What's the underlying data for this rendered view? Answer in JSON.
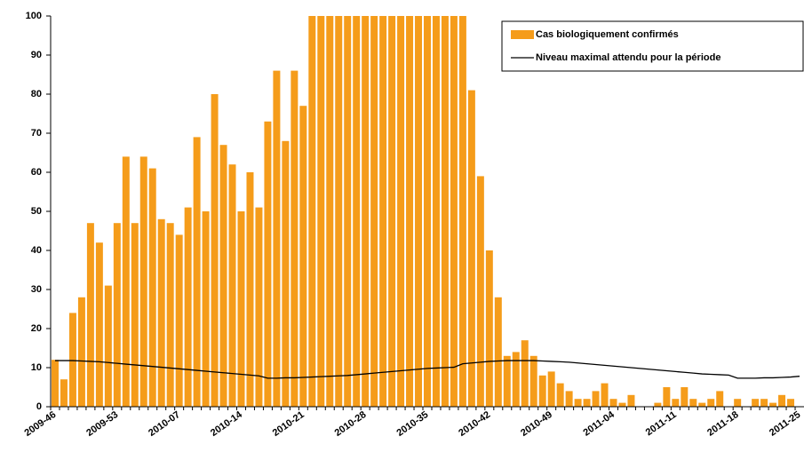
{
  "chart_data": {
    "type": "bar",
    "categories": [
      "2009-46",
      null,
      null,
      null,
      null,
      null,
      null,
      "2009-53",
      null,
      null,
      null,
      null,
      null,
      null,
      "2010-07",
      null,
      null,
      null,
      null,
      null,
      null,
      "2010-14",
      null,
      null,
      null,
      null,
      null,
      null,
      "2010-21",
      null,
      null,
      null,
      null,
      null,
      null,
      "2010-28",
      null,
      null,
      null,
      null,
      null,
      null,
      "2010-35",
      null,
      null,
      null,
      null,
      null,
      null,
      "2010-42",
      null,
      null,
      null,
      null,
      null,
      null,
      "2010-49",
      null,
      null,
      null,
      null,
      null,
      null,
      "2011-04",
      null,
      null,
      null,
      null,
      null,
      null,
      "2011-11",
      null,
      null,
      null,
      null,
      null,
      null,
      "2011-18",
      null,
      null,
      null,
      null,
      null,
      null,
      "2011-25"
    ],
    "series": [
      {
        "name": "Cas biologiquement confirmés",
        "type": "bar",
        "color": "#f59c1a",
        "values": [
          12,
          7,
          24,
          28,
          47,
          42,
          31,
          47,
          64,
          47,
          64,
          61,
          48,
          47,
          44,
          51,
          69,
          50,
          80,
          67,
          62,
          50,
          60,
          51,
          73,
          86,
          68,
          86,
          77,
          100,
          100,
          100,
          100,
          100,
          100,
          100,
          100,
          100,
          100,
          100,
          100,
          100,
          100,
          100,
          100,
          100,
          100,
          81,
          59,
          40,
          28,
          13,
          14,
          17,
          13,
          8,
          9,
          6,
          4,
          2,
          2,
          4,
          6,
          2,
          1,
          3,
          0,
          0,
          1,
          5,
          2,
          5,
          2,
          1,
          2,
          4,
          0,
          2,
          0,
          2,
          2,
          1,
          3,
          2,
          0
        ]
      },
      {
        "name": "Niveau maximal attendu pour la période",
        "type": "line",
        "color": "#000000",
        "values": [
          11.8,
          11.8,
          11.8,
          11.7,
          11.6,
          11.5,
          11.3,
          11.1,
          10.9,
          10.7,
          10.5,
          10.3,
          10.1,
          9.9,
          9.7,
          9.5,
          9.3,
          9.1,
          8.9,
          8.7,
          8.5,
          8.3,
          8.1,
          7.9,
          7.3,
          7.3,
          7.4,
          7.4,
          7.5,
          7.6,
          7.7,
          7.8,
          7.9,
          8.0,
          8.2,
          8.4,
          8.6,
          8.8,
          9.0,
          9.2,
          9.4,
          9.6,
          9.8,
          9.9,
          10.0,
          10.1,
          11.0,
          11.2,
          11.4,
          11.6,
          11.7,
          11.8,
          11.8,
          11.8,
          11.8,
          11.7,
          11.6,
          11.5,
          11.4,
          11.2,
          11.0,
          10.8,
          10.6,
          10.4,
          10.2,
          10.0,
          9.8,
          9.6,
          9.4,
          9.2,
          9.0,
          8.8,
          8.6,
          8.4,
          8.3,
          8.2,
          8.1,
          7.3,
          7.3,
          7.3,
          7.4,
          7.4,
          7.5,
          7.6,
          7.8
        ]
      }
    ],
    "ylim": [
      0,
      100
    ],
    "yticks": [
      0,
      10,
      20,
      30,
      40,
      50,
      60,
      70,
      80,
      90,
      100
    ],
    "grid": false,
    "legend": "top-right"
  }
}
